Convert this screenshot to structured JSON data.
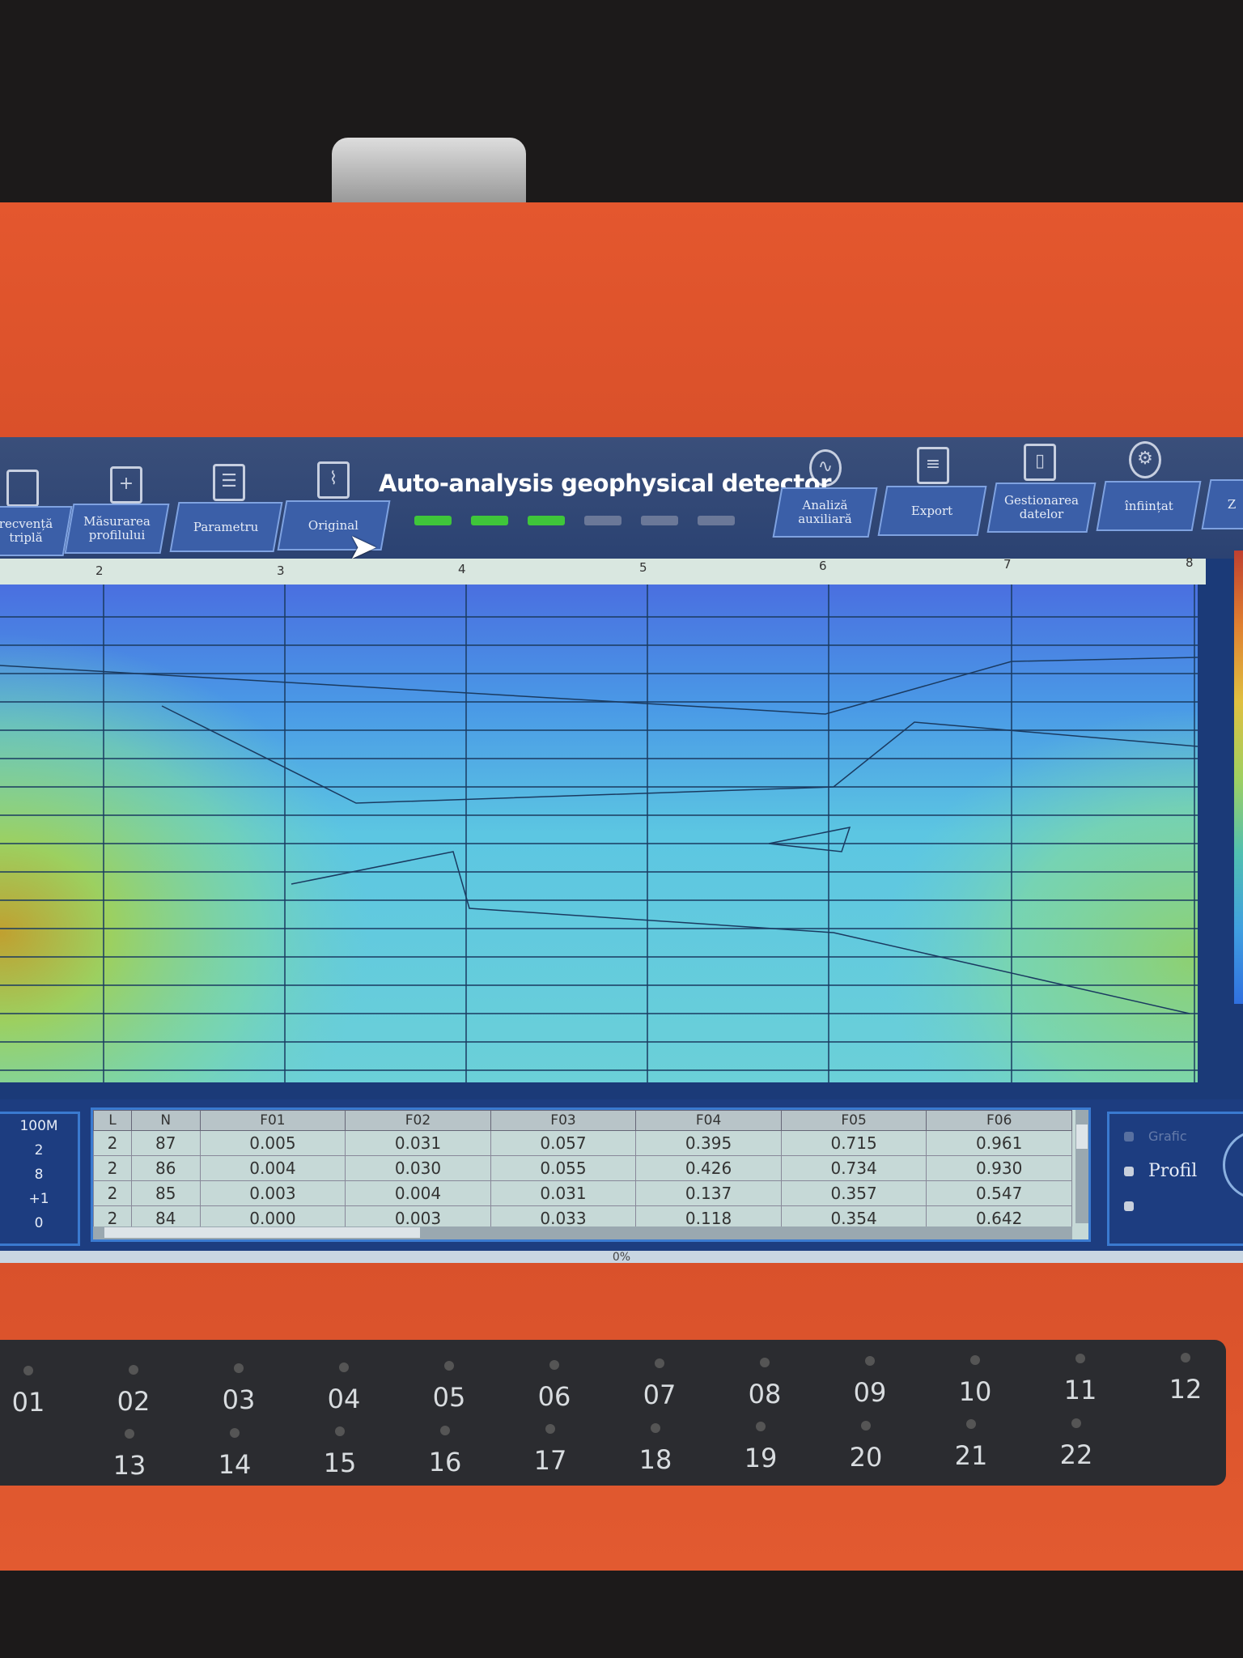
{
  "app": {
    "title": "Auto-analysis geophysical detector"
  },
  "toolbar": {
    "left_tabs": [
      "recvență triplă",
      "Măsurarea profilului",
      "Parametru",
      "Original"
    ],
    "right_tabs": [
      "Analiză auxiliară",
      "Export",
      "Gestionarea datelor",
      "înființat",
      "Z"
    ],
    "left_icons": [
      "file-icon",
      "new-file-icon",
      "list-icon",
      "image-chart-icon"
    ],
    "right_icons": [
      "analysis-chart-icon",
      "export-icon",
      "tablet-icon",
      "gear-icon"
    ],
    "leds": {
      "active": 3,
      "total": 6,
      "active_color": "#3fc63a",
      "inactive_color": "#6b7898"
    }
  },
  "ruler": {
    "ticks": [
      "2",
      "3",
      "4",
      "5",
      "6",
      "7",
      "8"
    ]
  },
  "side_values": [
    "100M",
    "2",
    "8",
    "+1",
    "0"
  ],
  "table": {
    "columns": [
      "L",
      "N",
      "F01",
      "F02",
      "F03",
      "F04",
      "F05",
      "F06"
    ],
    "rows": [
      [
        "2",
        "87",
        "0.005",
        "0.031",
        "0.057",
        "0.395",
        "0.715",
        "0.961"
      ],
      [
        "2",
        "86",
        "0.004",
        "0.030",
        "0.055",
        "0.426",
        "0.734",
        "0.930"
      ],
      [
        "2",
        "85",
        "0.003",
        "0.004",
        "0.031",
        "0.137",
        "0.357",
        "0.547"
      ],
      [
        "2",
        "84",
        "0.000",
        "0.003",
        "0.033",
        "0.118",
        "0.354",
        "0.642"
      ]
    ]
  },
  "right_panel": {
    "options": [
      "Grafic",
      "Profil",
      ""
    ],
    "selected": 1
  },
  "status": {
    "progress": "0%"
  },
  "keypad": {
    "row1": [
      "01",
      "02",
      "03",
      "04",
      "05",
      "06",
      "07",
      "08",
      "09",
      "10",
      "11",
      "12"
    ],
    "row2": [
      "13",
      "14",
      "15",
      "16",
      "17",
      "18",
      "19",
      "20",
      "21",
      "22"
    ]
  }
}
